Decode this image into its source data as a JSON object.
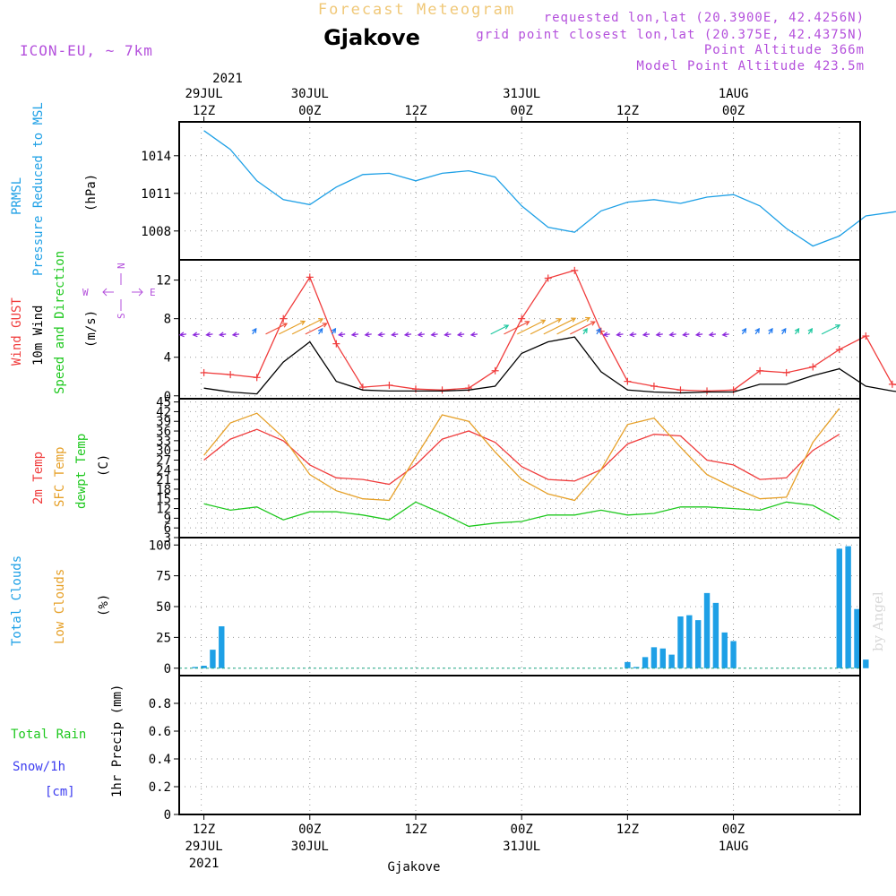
{
  "header": {
    "title": "Forecast Meteogram",
    "location": "Gjakove",
    "model": "ICON-EU, ~ 7km",
    "requested": "requested lon,lat (20.3900E, 42.4256N)",
    "grid_point": "grid point closest lon,lat (20.375E, 42.4375N)",
    "point_altitude": "Point Altitude 366m",
    "model_altitude": "Model Point Altitude 423.5m",
    "credit": "by Angel",
    "footer_location": "Gjakove"
  },
  "colors": {
    "pressure": "#1ea0e6",
    "gust": "#f03c3c",
    "wind": "#000000",
    "temp2m": "#f03c3c",
    "sfc_temp": "#e6a028",
    "dewpt": "#1ec81e",
    "total_clouds": "#1ea0e6",
    "low_clouds": "#e6a028",
    "rain": "#1ec81e",
    "snow": "#3c3cf0",
    "header_purple": "#b450dc",
    "title_gold": "#f0c878",
    "compass": "#b450dc"
  },
  "chart_data": [
    {
      "type": "line",
      "panel": "pressure",
      "ylabel_lines": [
        "PRMSL",
        "Pressure Reduced to MSL"
      ],
      "unit": "(hPa)",
      "ylim": [
        1005.7,
        1016.7
      ],
      "yticks": [
        "1014",
        "1011",
        "1008"
      ],
      "ytick_values": [
        1014,
        1011,
        1008
      ],
      "x_start_hour": 0,
      "x_step_hours": 3,
      "series": [
        {
          "key": "prmsl",
          "values": [
            1016.0,
            1014.5,
            1012.0,
            1010.5,
            1010.1,
            1011.5,
            1012.5,
            1012.6,
            1012.0,
            1012.6,
            1012.8,
            1012.3,
            1010.0,
            1008.3,
            1007.9,
            1009.6,
            1010.3,
            1010.5,
            1010.2,
            1010.7,
            1010.9,
            1010.0,
            1008.2,
            1006.8,
            1007.6,
            1009.2,
            1009.5,
            1009.8,
            1010.0,
            1010.4,
            1010.6,
            1010.5,
            1008.3
          ]
        }
      ]
    },
    {
      "type": "line",
      "panel": "wind",
      "ylabel_lines": [
        "Wind GUST",
        "10m Wind",
        "Speed and Direction"
      ],
      "unit": "(m/s)",
      "ylim": [
        -0.3,
        14.1
      ],
      "yticks": [
        "12",
        "8",
        "4",
        "0"
      ],
      "ytick_values": [
        12,
        8,
        4,
        0
      ],
      "x_start_hour": 0,
      "x_step_hours": 3,
      "compass": {
        "n": "N",
        "s": "S",
        "w": "W",
        "e": "E"
      },
      "series": [
        {
          "key": "gust",
          "values": [
            2.4,
            2.2,
            1.9,
            8.0,
            12.3,
            5.4,
            0.9,
            1.1,
            0.7,
            0.6,
            0.8,
            2.6,
            8.0,
            12.2,
            13.0,
            6.7,
            1.5,
            1.0,
            0.6,
            0.5,
            0.6,
            2.6,
            2.4,
            3.0,
            4.8,
            6.2,
            1.2,
            0.9,
            0.4,
            0.5,
            0.6,
            0.9,
            3.0,
            4.5
          ]
        },
        {
          "key": "wind10m",
          "values": [
            0.8,
            0.4,
            0.2,
            3.5,
            5.6,
            1.5,
            0.6,
            0.5,
            0.5,
            0.5,
            0.6,
            1.0,
            4.4,
            5.6,
            6.1,
            2.5,
            0.6,
            0.4,
            0.3,
            0.4,
            0.4,
            1.2,
            1.2,
            2.1,
            2.8,
            1.0,
            0.5,
            0.2,
            0.3,
            0.4,
            0.5,
            0.7,
            0.5,
            1.8
          ]
        }
      ]
    },
    {
      "type": "line",
      "panel": "temperature",
      "ylabel_lines": [
        "2m Temp",
        "SFC Temp",
        "dewpt Temp"
      ],
      "unit": "(C)",
      "ylim": [
        3,
        46
      ],
      "yticks": [
        "45",
        "42",
        "39",
        "36",
        "33",
        "30",
        "27",
        "24",
        "21",
        "18",
        "15",
        "12",
        "9",
        "6",
        "3"
      ],
      "ytick_values": [
        45,
        42,
        39,
        36,
        33,
        30,
        27,
        24,
        21,
        18,
        15,
        12,
        9,
        6,
        3
      ],
      "x_start_hour": 0,
      "x_step_hours": 3,
      "series": [
        {
          "key": "temp2m",
          "values": [
            27.0,
            33.5,
            36.5,
            33.0,
            25.5,
            21.5,
            21.0,
            19.5,
            25.5,
            33.5,
            36.0,
            32.5,
            25.0,
            21.0,
            20.5,
            24.0,
            32.0,
            35.0,
            34.5,
            27.0,
            25.5,
            21.0,
            21.5,
            30.0,
            35.0
          ]
        },
        {
          "key": "sfc_temp",
          "values": [
            28.5,
            38.5,
            41.5,
            34.0,
            22.5,
            17.5,
            15.0,
            14.5,
            28.0,
            41.0,
            39.0,
            29.5,
            21.0,
            16.5,
            14.5,
            24.0,
            38.0,
            40.0,
            31.0,
            22.5,
            18.5,
            15.0,
            15.5,
            32.5,
            43.0
          ]
        },
        {
          "key": "dewpt",
          "values": [
            13.5,
            11.5,
            12.5,
            8.5,
            11.0,
            11.0,
            10.0,
            8.5,
            14.0,
            10.5,
            6.5,
            7.5,
            8.0,
            10.0,
            10.0,
            11.5,
            10.0,
            10.5,
            12.5,
            12.5,
            12.0,
            11.5,
            14.0,
            13.0,
            8.5
          ]
        }
      ]
    },
    {
      "type": "bar",
      "panel": "clouds",
      "ylabel_lines": [
        "Total Clouds",
        "Low Clouds"
      ],
      "unit": "(%)",
      "ylim": [
        -6,
        106
      ],
      "yticks": [
        "100",
        "75",
        "50",
        "25",
        "0"
      ],
      "ytick_values": [
        100,
        75,
        50,
        25,
        0
      ],
      "x_hours": [
        -1,
        0,
        1,
        2,
        3,
        48,
        49,
        50,
        51,
        52,
        53,
        54,
        55,
        56,
        57,
        58,
        59,
        60,
        61,
        62,
        72,
        73,
        74,
        75
      ],
      "series": [
        {
          "key": "total_clouds",
          "values": [
            1,
            2,
            15,
            34,
            0,
            5,
            1,
            9,
            17,
            16,
            11,
            42,
            43,
            39,
            61,
            53,
            29,
            22,
            0,
            0,
            97,
            99,
            48,
            7
          ]
        },
        {
          "key": "low_clouds",
          "values": [
            0,
            0,
            0,
            0,
            0,
            0,
            0,
            0,
            0,
            0,
            0,
            0,
            0,
            0,
            0,
            0,
            0,
            0,
            0,
            0,
            0,
            0,
            0,
            0
          ]
        }
      ]
    },
    {
      "type": "bar",
      "panel": "precip",
      "ylabel_lines": [
        "Total Rain",
        "Snow/1h",
        "[cm]"
      ],
      "unit": "1hr Precip (mm)",
      "ylim": [
        0,
        1
      ],
      "yticks": [
        "0.8",
        "0.6",
        "0.4",
        "0.2",
        "0"
      ],
      "ytick_values": [
        0.8,
        0.6,
        0.4,
        0.2,
        0
      ],
      "series": [
        {
          "key": "rain",
          "values": []
        },
        {
          "key": "snow",
          "values": []
        }
      ]
    }
  ],
  "xaxis": {
    "top_year": "2021",
    "ticks": [
      {
        "hour": 0,
        "lines": [
          "29JUL",
          "12Z"
        ]
      },
      {
        "hour": 12,
        "lines": [
          "30JUL",
          "00Z"
        ]
      },
      {
        "hour": 24,
        "lines": [
          "",
          "12Z"
        ]
      },
      {
        "hour": 36,
        "lines": [
          "31JUL",
          "00Z"
        ]
      },
      {
        "hour": 48,
        "lines": [
          "",
          "12Z"
        ]
      },
      {
        "hour": 60,
        "lines": [
          "1AUG",
          "00Z"
        ]
      }
    ],
    "bottom_ticks": [
      {
        "hour": 0,
        "lines": [
          "12Z",
          "29JUL",
          "2021"
        ]
      },
      {
        "hour": 12,
        "lines": [
          "00Z",
          "30JUL"
        ]
      },
      {
        "hour": 24,
        "lines": [
          "12Z"
        ]
      },
      {
        "hour": 36,
        "lines": [
          "00Z",
          "31JUL"
        ]
      },
      {
        "hour": 48,
        "lines": [
          "12Z"
        ]
      },
      {
        "hour": 60,
        "lines": [
          "00Z",
          "1AUG"
        ]
      }
    ]
  }
}
